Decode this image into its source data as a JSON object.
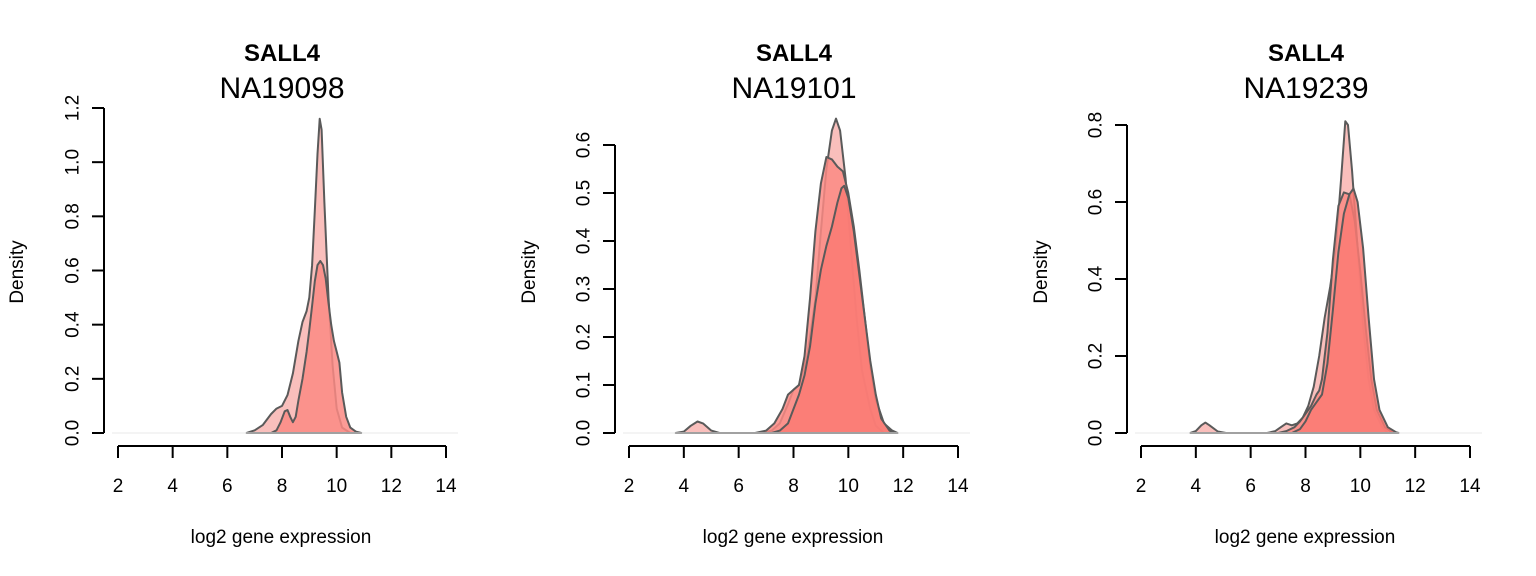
{
  "chart_data": [
    {
      "type": "area",
      "gene": "SALL4",
      "sample": "NA19098",
      "xlabel": "log2 gene expression",
      "ylabel": "Density",
      "xlim": [
        2,
        14
      ],
      "ylim": [
        0,
        1.2
      ],
      "xticks": [
        "2",
        "4",
        "6",
        "8",
        "10",
        "12",
        "14"
      ],
      "yticks": [
        "0.0",
        "0.2",
        "0.4",
        "0.6",
        "0.8",
        "1.0",
        "1.2"
      ],
      "series": [
        {
          "fill": "#f8b4b0",
          "points": [
            [
              6.7,
              0
            ],
            [
              7.0,
              0.01
            ],
            [
              7.3,
              0.03
            ],
            [
              7.6,
              0.07
            ],
            [
              7.8,
              0.09
            ],
            [
              8.0,
              0.1
            ],
            [
              8.2,
              0.14
            ],
            [
              8.4,
              0.22
            ],
            [
              8.6,
              0.34
            ],
            [
              8.75,
              0.41
            ],
            [
              8.9,
              0.45
            ],
            [
              9.0,
              0.5
            ],
            [
              9.1,
              0.62
            ],
            [
              9.2,
              0.82
            ],
            [
              9.3,
              1.03
            ],
            [
              9.38,
              1.16
            ],
            [
              9.45,
              1.12
            ],
            [
              9.55,
              0.85
            ],
            [
              9.7,
              0.5
            ],
            [
              9.85,
              0.25
            ],
            [
              10.0,
              0.09
            ],
            [
              10.2,
              0.02
            ],
            [
              10.5,
              0
            ]
          ]
        },
        {
          "fill": "#fc8a84",
          "points": [
            [
              7.6,
              0
            ],
            [
              7.8,
              0.01
            ],
            [
              7.95,
              0.04
            ],
            [
              8.1,
              0.08
            ],
            [
              8.2,
              0.085
            ],
            [
              8.3,
              0.06
            ],
            [
              8.4,
              0.04
            ],
            [
              8.5,
              0.06
            ],
            [
              8.6,
              0.12
            ],
            [
              8.75,
              0.2
            ],
            [
              8.9,
              0.3
            ],
            [
              9.0,
              0.38
            ],
            [
              9.1,
              0.47
            ],
            [
              9.2,
              0.56
            ],
            [
              9.3,
              0.62
            ],
            [
              9.4,
              0.635
            ],
            [
              9.5,
              0.62
            ],
            [
              9.6,
              0.57
            ],
            [
              9.7,
              0.48
            ],
            [
              9.8,
              0.4
            ],
            [
              9.9,
              0.34
            ],
            [
              10.0,
              0.3
            ],
            [
              10.1,
              0.26
            ],
            [
              10.2,
              0.15
            ],
            [
              10.35,
              0.06
            ],
            [
              10.5,
              0.02
            ],
            [
              10.7,
              0.005
            ],
            [
              10.9,
              0
            ]
          ]
        }
      ]
    },
    {
      "type": "area",
      "gene": "SALL4",
      "sample": "NA19101",
      "xlabel": "log2 gene expression",
      "ylabel": "Density",
      "xlim": [
        2,
        14
      ],
      "ylim": [
        0,
        0.6
      ],
      "xticks": [
        "2",
        "4",
        "6",
        "8",
        "10",
        "12",
        "14"
      ],
      "yticks": [
        "0.0",
        "0.1",
        "0.2",
        "0.3",
        "0.4",
        "0.5",
        "0.6"
      ],
      "series": [
        {
          "fill": "#f8b4b0",
          "points": [
            [
              3.7,
              0
            ],
            [
              4.0,
              0.003
            ],
            [
              4.25,
              0.015
            ],
            [
              4.5,
              0.024
            ],
            [
              4.7,
              0.02
            ],
            [
              5.0,
              0.005
            ],
            [
              5.3,
              0
            ],
            [
              6.8,
              0
            ],
            [
              7.2,
              0.005
            ],
            [
              7.5,
              0.02
            ],
            [
              7.8,
              0.06
            ],
            [
              8.0,
              0.09
            ],
            [
              8.2,
              0.1
            ],
            [
              8.5,
              0.16
            ],
            [
              8.8,
              0.28
            ],
            [
              9.0,
              0.42
            ],
            [
              9.2,
              0.55
            ],
            [
              9.4,
              0.63
            ],
            [
              9.55,
              0.655
            ],
            [
              9.7,
              0.63
            ],
            [
              9.9,
              0.53
            ],
            [
              10.1,
              0.38
            ],
            [
              10.3,
              0.24
            ],
            [
              10.5,
              0.13
            ],
            [
              10.8,
              0.05
            ],
            [
              11.0,
              0.015
            ],
            [
              11.3,
              0
            ]
          ]
        },
        {
          "fill": "#fc8a84",
          "points": [
            [
              6.6,
              0
            ],
            [
              7.0,
              0.005
            ],
            [
              7.3,
              0.02
            ],
            [
              7.6,
              0.05
            ],
            [
              7.8,
              0.08
            ],
            [
              8.0,
              0.09
            ],
            [
              8.2,
              0.1
            ],
            [
              8.4,
              0.16
            ],
            [
              8.6,
              0.28
            ],
            [
              8.8,
              0.42
            ],
            [
              9.0,
              0.52
            ],
            [
              9.2,
              0.575
            ],
            [
              9.4,
              0.57
            ],
            [
              9.6,
              0.555
            ],
            [
              9.8,
              0.545
            ],
            [
              10.0,
              0.5
            ],
            [
              10.2,
              0.43
            ],
            [
              10.4,
              0.34
            ],
            [
              10.6,
              0.24
            ],
            [
              10.8,
              0.14
            ],
            [
              11.0,
              0.07
            ],
            [
              11.3,
              0.02
            ],
            [
              11.6,
              0.005
            ],
            [
              11.8,
              0
            ]
          ]
        },
        {
          "fill": "#fa7a73",
          "points": [
            [
              7.2,
              0
            ],
            [
              7.5,
              0.005
            ],
            [
              7.8,
              0.02
            ],
            [
              8.0,
              0.05
            ],
            [
              8.2,
              0.08
            ],
            [
              8.4,
              0.12
            ],
            [
              8.6,
              0.18
            ],
            [
              8.8,
              0.27
            ],
            [
              9.0,
              0.34
            ],
            [
              9.2,
              0.39
            ],
            [
              9.4,
              0.43
            ],
            [
              9.6,
              0.48
            ],
            [
              9.75,
              0.51
            ],
            [
              9.85,
              0.515
            ],
            [
              10.0,
              0.49
            ],
            [
              10.2,
              0.42
            ],
            [
              10.4,
              0.33
            ],
            [
              10.6,
              0.24
            ],
            [
              10.8,
              0.15
            ],
            [
              11.0,
              0.08
            ],
            [
              11.2,
              0.03
            ],
            [
              11.5,
              0.005
            ],
            [
              11.7,
              0
            ]
          ]
        }
      ]
    },
    {
      "type": "area",
      "gene": "SALL4",
      "sample": "NA19239",
      "xlabel": "log2 gene expression",
      "ylabel": "Density",
      "xlim": [
        2,
        14
      ],
      "ylim": [
        0,
        0.8
      ],
      "xticks": [
        "2",
        "4",
        "6",
        "8",
        "10",
        "12",
        "14"
      ],
      "yticks": [
        "0.0",
        "0.2",
        "0.4",
        "0.6",
        "0.8"
      ],
      "series": [
        {
          "fill": "#f8b4b0",
          "points": [
            [
              3.8,
              0
            ],
            [
              4.0,
              0.005
            ],
            [
              4.2,
              0.02
            ],
            [
              4.35,
              0.027
            ],
            [
              4.5,
              0.02
            ],
            [
              4.8,
              0.004
            ],
            [
              5.1,
              0
            ],
            [
              6.6,
              0
            ],
            [
              6.9,
              0.005
            ],
            [
              7.1,
              0.015
            ],
            [
              7.3,
              0.025
            ],
            [
              7.5,
              0.02
            ],
            [
              7.7,
              0.025
            ],
            [
              7.9,
              0.04
            ],
            [
              8.1,
              0.07
            ],
            [
              8.3,
              0.12
            ],
            [
              8.5,
              0.2
            ],
            [
              8.7,
              0.3
            ],
            [
              8.9,
              0.38
            ],
            [
              9.1,
              0.48
            ],
            [
              9.3,
              0.66
            ],
            [
              9.45,
              0.81
            ],
            [
              9.55,
              0.8
            ],
            [
              9.7,
              0.68
            ],
            [
              9.9,
              0.48
            ],
            [
              10.1,
              0.28
            ],
            [
              10.3,
              0.14
            ],
            [
              10.5,
              0.06
            ],
            [
              10.8,
              0.015
            ],
            [
              11.0,
              0
            ]
          ]
        },
        {
          "fill": "#fc8a84",
          "points": [
            [
              7.0,
              0
            ],
            [
              7.3,
              0.005
            ],
            [
              7.6,
              0.015
            ],
            [
              7.8,
              0.03
            ],
            [
              8.0,
              0.05
            ],
            [
              8.2,
              0.07
            ],
            [
              8.4,
              0.1
            ],
            [
              8.5,
              0.11
            ],
            [
              8.6,
              0.14
            ],
            [
              8.8,
              0.26
            ],
            [
              9.0,
              0.45
            ],
            [
              9.2,
              0.59
            ],
            [
              9.4,
              0.625
            ],
            [
              9.6,
              0.62
            ],
            [
              9.8,
              0.55
            ],
            [
              10.0,
              0.42
            ],
            [
              10.2,
              0.27
            ],
            [
              10.4,
              0.14
            ],
            [
              10.6,
              0.06
            ],
            [
              10.9,
              0.015
            ],
            [
              11.2,
              0
            ]
          ]
        },
        {
          "fill": "#fa7a73",
          "points": [
            [
              7.5,
              0
            ],
            [
              7.8,
              0.01
            ],
            [
              8.0,
              0.03
            ],
            [
              8.2,
              0.06
            ],
            [
              8.4,
              0.08
            ],
            [
              8.6,
              0.1
            ],
            [
              8.8,
              0.18
            ],
            [
              9.0,
              0.32
            ],
            [
              9.2,
              0.47
            ],
            [
              9.4,
              0.57
            ],
            [
              9.6,
              0.62
            ],
            [
              9.75,
              0.635
            ],
            [
              9.9,
              0.6
            ],
            [
              10.1,
              0.48
            ],
            [
              10.3,
              0.3
            ],
            [
              10.5,
              0.14
            ],
            [
              10.7,
              0.06
            ],
            [
              11.0,
              0.015
            ],
            [
              11.3,
              0.002
            ],
            [
              11.4,
              0
            ]
          ]
        }
      ]
    }
  ]
}
